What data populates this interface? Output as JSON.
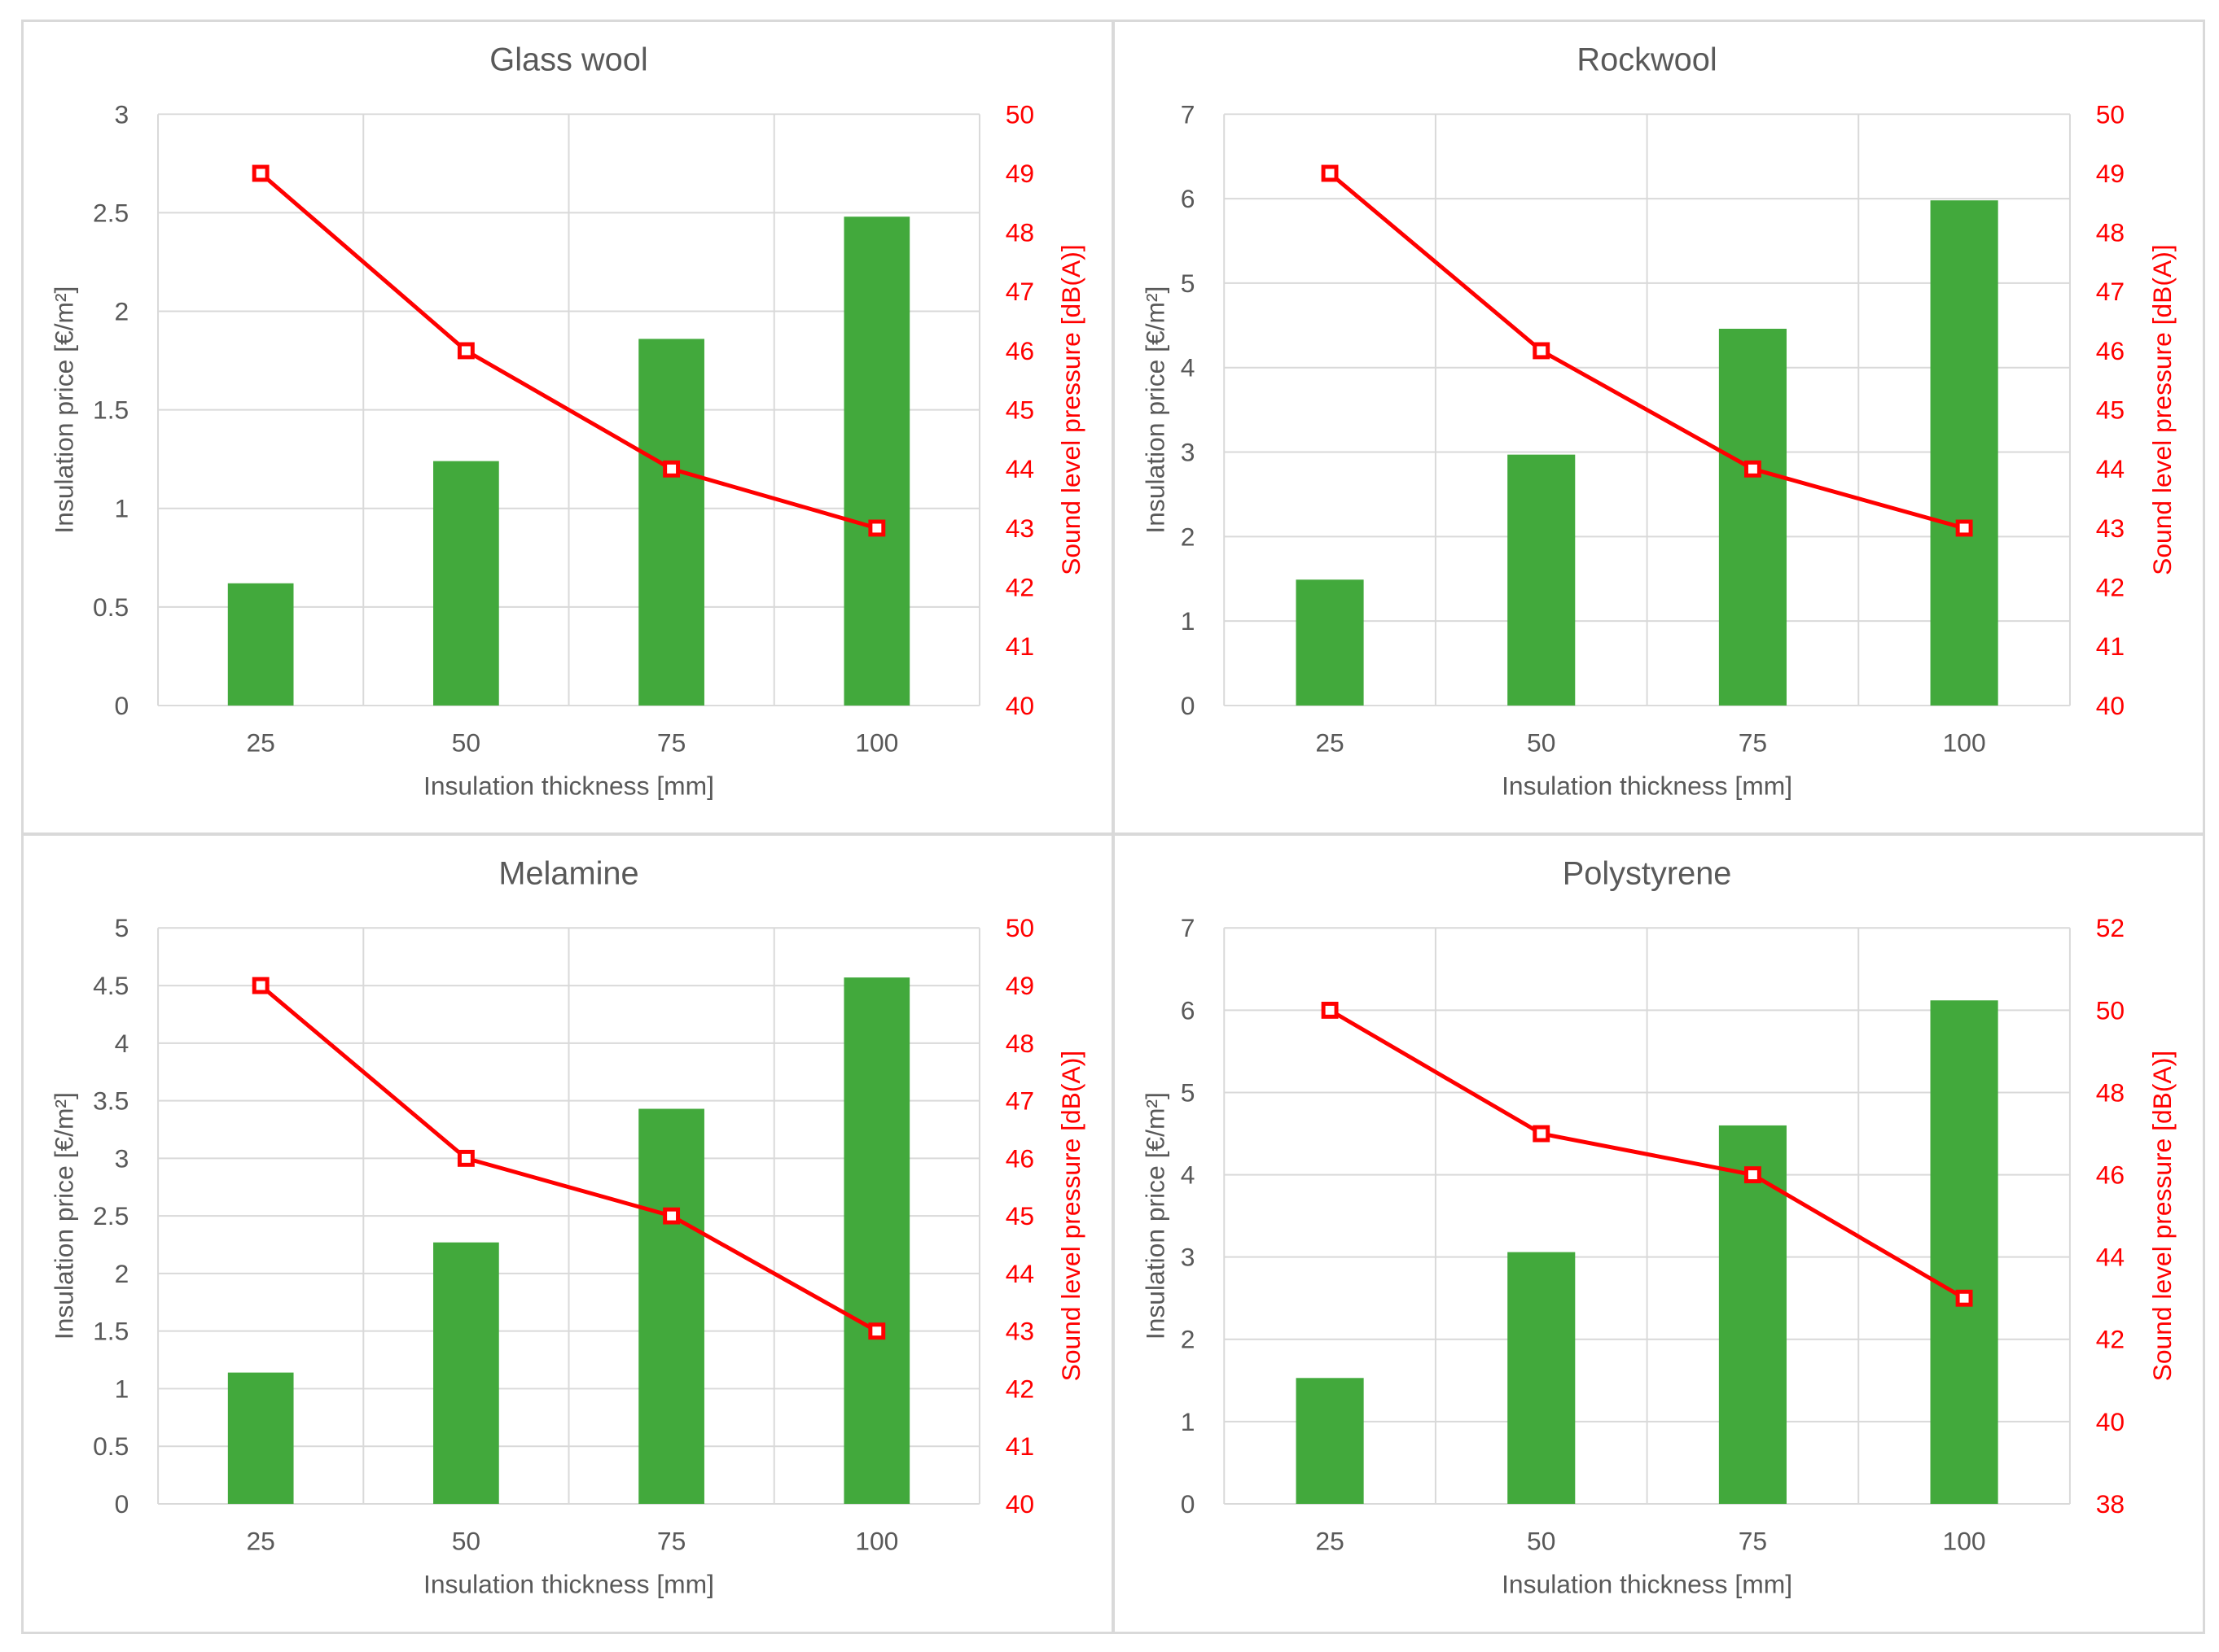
{
  "colors": {
    "bar": "#42a93c",
    "line": "#ff0000",
    "grid": "#d9d9d9",
    "text": "#595959",
    "secondary_axis": "#ff0000"
  },
  "chart_data": [
    {
      "type": "bar",
      "title": "Glass wool",
      "categories": [
        "25",
        "50",
        "75",
        "100"
      ],
      "xlabel": "Insulation thickness [mm]",
      "ylabel": "Insulation price [€/m²]",
      "y2label": "Sound level pressure [dB(A)]",
      "ylim": [
        0,
        3
      ],
      "y_ticks": [
        "0",
        "0.5",
        "1",
        "1.5",
        "2",
        "2.5",
        "3"
      ],
      "y2lim": [
        40,
        50
      ],
      "y2_ticks": [
        "40",
        "41",
        "42",
        "43",
        "44",
        "45",
        "46",
        "47",
        "48",
        "49",
        "50"
      ],
      "series": [
        {
          "name": "Insulation price",
          "type": "bar",
          "axis": "left",
          "values": [
            0.62,
            1.24,
            1.86,
            2.48
          ]
        },
        {
          "name": "Sound level pressure",
          "type": "line",
          "axis": "right",
          "values": [
            49,
            46,
            44,
            43
          ]
        }
      ]
    },
    {
      "type": "bar",
      "title": "Rockwool",
      "categories": [
        "25",
        "50",
        "75",
        "100"
      ],
      "xlabel": "Insulation thickness [mm]",
      "ylabel": "Insulation price [€/m²]",
      "y2label": "Sound level pressure [dB(A)]",
      "ylim": [
        0,
        7
      ],
      "y_ticks": [
        "0",
        "1",
        "2",
        "3",
        "4",
        "5",
        "6",
        "7"
      ],
      "y2lim": [
        40,
        50
      ],
      "y2_ticks": [
        "40",
        "41",
        "42",
        "43",
        "44",
        "45",
        "46",
        "47",
        "48",
        "49",
        "50"
      ],
      "series": [
        {
          "name": "Insulation price",
          "type": "bar",
          "axis": "left",
          "values": [
            1.49,
            2.97,
            4.46,
            5.98
          ]
        },
        {
          "name": "Sound level pressure",
          "type": "line",
          "axis": "right",
          "values": [
            49,
            46,
            44,
            43
          ]
        }
      ]
    },
    {
      "type": "bar",
      "title": "Melamine",
      "categories": [
        "25",
        "50",
        "75",
        "100"
      ],
      "xlabel": "Insulation thickness [mm]",
      "ylabel": "Insulation price [€/m²]",
      "y2label": "Sound level pressure [dB(A)]",
      "ylim": [
        0,
        5
      ],
      "y_ticks": [
        "0",
        "0.5",
        "1",
        "1.5",
        "2",
        "2.5",
        "3",
        "3.5",
        "4",
        "4.5",
        "5"
      ],
      "y2lim": [
        40,
        50
      ],
      "y2_ticks": [
        "40",
        "41",
        "42",
        "43",
        "44",
        "45",
        "46",
        "47",
        "48",
        "49",
        "50"
      ],
      "series": [
        {
          "name": "Insulation price",
          "type": "bar",
          "axis": "left",
          "values": [
            1.14,
            2.27,
            3.43,
            4.57
          ]
        },
        {
          "name": "Sound level pressure",
          "type": "line",
          "axis": "right",
          "values": [
            49,
            46,
            45,
            43
          ]
        }
      ]
    },
    {
      "type": "bar",
      "title": "Polystyrene",
      "categories": [
        "25",
        "50",
        "75",
        "100"
      ],
      "xlabel": "Insulation thickness [mm]",
      "ylabel": "Insulation price [€/m²]",
      "y2label": "Sound level pressure [dB(A)]",
      "ylim": [
        0,
        7
      ],
      "y_ticks": [
        "0",
        "1",
        "2",
        "3",
        "4",
        "5",
        "6",
        "7"
      ],
      "y2lim": [
        38,
        52
      ],
      "y2_ticks": [
        "38",
        "40",
        "42",
        "44",
        "46",
        "48",
        "50",
        "52"
      ],
      "series": [
        {
          "name": "Insulation price",
          "type": "bar",
          "axis": "left",
          "values": [
            1.53,
            3.06,
            4.6,
            6.12
          ]
        },
        {
          "name": "Sound level pressure",
          "type": "line",
          "axis": "right",
          "values": [
            50,
            47,
            46,
            43
          ]
        }
      ]
    }
  ]
}
